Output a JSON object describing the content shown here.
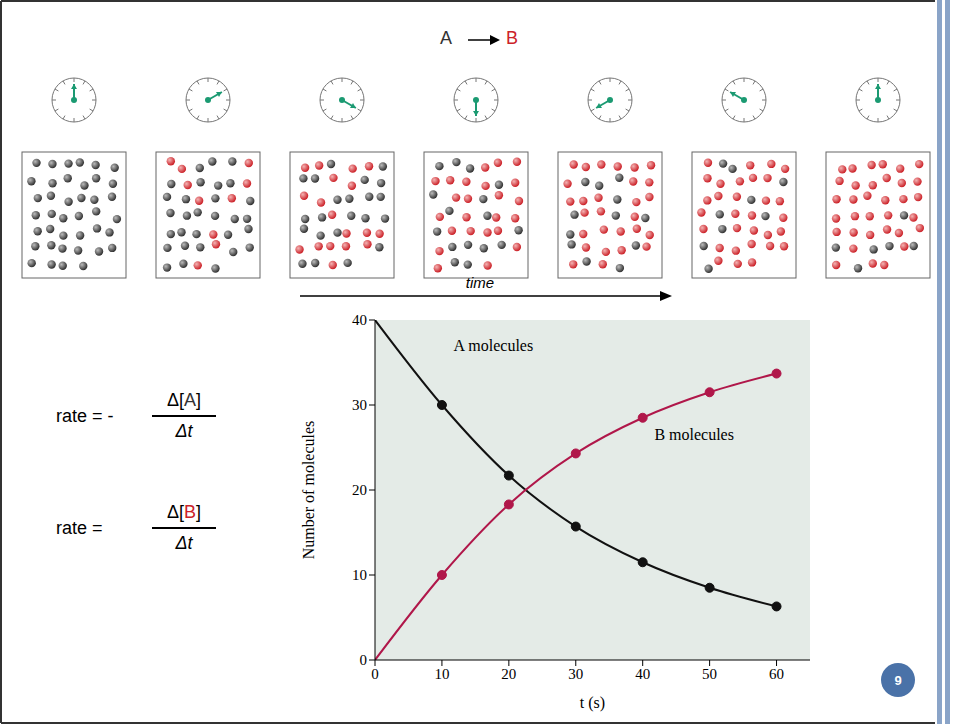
{
  "header": {
    "reactant": "A",
    "product": "B"
  },
  "species_colors": {
    "A": "#333333",
    "B": "#cc2229"
  },
  "frames": [
    {
      "t": 0,
      "A": 40,
      "B": 0
    },
    {
      "t": 10,
      "A": 30,
      "B": 10
    },
    {
      "t": 20,
      "A": 22,
      "B": 18
    },
    {
      "t": 30,
      "A": 16,
      "B": 24
    },
    {
      "t": 40,
      "A": 12,
      "B": 28
    },
    {
      "t": 50,
      "A": 9,
      "B": 31
    },
    {
      "t": 60,
      "A": 6,
      "B": 34
    }
  ],
  "time_label": "time",
  "rates": [
    {
      "lhs": "rate = -",
      "numerator": [
        "Δ[",
        "A",
        "]"
      ],
      "denominator": "Δt"
    },
    {
      "lhs": "rate =",
      "numerator": [
        "Δ[",
        "B",
        "]"
      ],
      "denominator": "Δt"
    }
  ],
  "page_number": "9",
  "chart_data": {
    "type": "line",
    "x": [
      0,
      10,
      20,
      30,
      40,
      50,
      60
    ],
    "series": [
      {
        "name": "A molecules",
        "color": "#111111",
        "marker": "circle",
        "values": [
          40,
          30,
          21.7,
          15.7,
          11.5,
          8.5,
          6.3
        ]
      },
      {
        "name": "B molecules",
        "color": "#b0174a",
        "marker": "circle",
        "values": [
          0,
          10,
          18.3,
          24.3,
          28.5,
          31.5,
          33.7
        ]
      }
    ],
    "xlim": [
      0,
      65
    ],
    "ylim": [
      0,
      40
    ],
    "xticks": [
      0,
      10,
      20,
      30,
      40,
      50,
      60
    ],
    "yticks": [
      0,
      10,
      20,
      30,
      40
    ],
    "x_label": "t (s)",
    "y_label": "Number of molecules",
    "annotations": [
      {
        "text": "A molecules",
        "x": 11,
        "y": 37
      },
      {
        "text": "B molecules",
        "x": 41,
        "y": 26.5
      }
    ],
    "grid": false
  }
}
